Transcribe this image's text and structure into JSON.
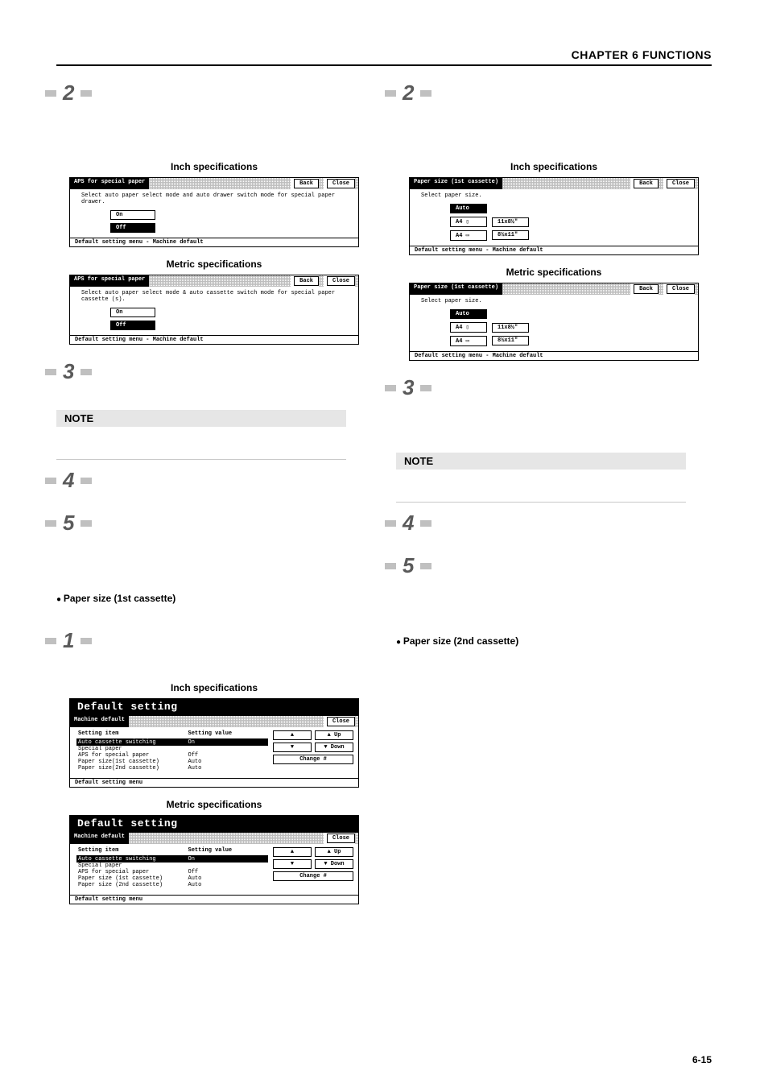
{
  "header": "CHAPTER 6  FUNCTIONS",
  "page_number": "6-15",
  "labels": {
    "inch": "Inch specifications",
    "metric": "Metric specifications",
    "note": "NOTE",
    "back": "Back",
    "close": "Close"
  },
  "steps": {
    "s1": "1",
    "s2": "2",
    "s3": "3",
    "s4": "4",
    "s5": "5"
  },
  "bullets": {
    "paper_1st": "Paper size (1st cassette)",
    "paper_2nd": "Paper size (2nd cassette)"
  },
  "aps_panel": {
    "title": "APS for special paper",
    "desc_inch": "Select auto paper select mode and auto drawer switch mode for special paper drawer.",
    "desc_metric": "Select auto paper select mode & auto cassette switch mode for special paper cassette (s).",
    "on": "On",
    "off": "Off",
    "footer": "Default setting menu - Machine default"
  },
  "size_panel": {
    "title": "Paper size (1st cassette)",
    "desc": "Select paper size.",
    "auto": "Auto",
    "a4p": "A4 ▯",
    "a4l": "A4 ▭",
    "inch_r1": "11x8½\"",
    "inch_r2": "8½x11\"",
    "metric_r1": "11x8½\"",
    "metric_r2": "8½x11\"",
    "footer": "Default setting menu - Machine default"
  },
  "ds_panel": {
    "big_title": "Default setting",
    "bar_title": "Machine default",
    "col1": "Setting item",
    "col2": "Setting value",
    "rows_inch": [
      {
        "k": "Auto cassette switching",
        "v": "On",
        "sel": true
      },
      {
        "k": "Special paper",
        "v": ""
      },
      {
        "k": "APS for special paper",
        "v": "Off"
      },
      {
        "k": "Paper size(1st cassette)",
        "v": "Auto"
      },
      {
        "k": "Paper size(2nd cassette)",
        "v": "Auto"
      }
    ],
    "rows_metric": [
      {
        "k": "Auto cassette switching",
        "v": "On",
        "sel": true
      },
      {
        "k": "Special paper",
        "v": ""
      },
      {
        "k": "APS for special paper",
        "v": "Off"
      },
      {
        "k": "Paper size (1st cassette)",
        "v": "Auto"
      },
      {
        "k": "Paper size (2nd cassette)",
        "v": "Auto"
      }
    ],
    "up": "▲ Up",
    "down": "▼ Down",
    "up_sym": "▲",
    "dn_sym": "▼",
    "change": "Change #",
    "footer": "Default setting menu"
  }
}
